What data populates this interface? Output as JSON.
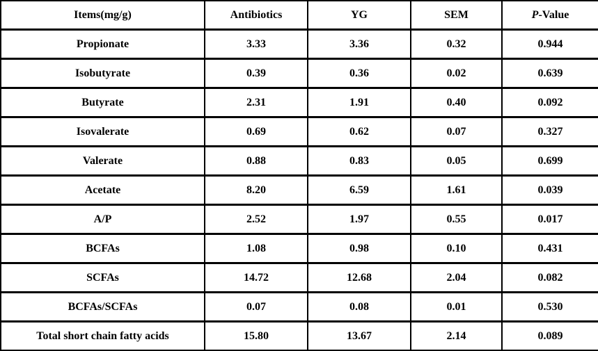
{
  "table": {
    "headers": {
      "items": "Items(mg/g)",
      "antibiotics": "Antibiotics",
      "yg": "YG",
      "sem": "SEM",
      "pvalue_italic": "P",
      "pvalue_rest": "-Value"
    },
    "rows": [
      {
        "item": "Propionate",
        "antibiotics": "3.33",
        "yg": "3.36",
        "sem": "0.32",
        "pvalue": "0.944"
      },
      {
        "item": "Isobutyrate",
        "antibiotics": "0.39",
        "yg": "0.36",
        "sem": "0.02",
        "pvalue": "0.639"
      },
      {
        "item": "Butyrate",
        "antibiotics": "2.31",
        "yg": "1.91",
        "sem": "0.40",
        "pvalue": "0.092"
      },
      {
        "item": "Isovalerate",
        "antibiotics": "0.69",
        "yg": "0.62",
        "sem": "0.07",
        "pvalue": "0.327"
      },
      {
        "item": "Valerate",
        "antibiotics": "0.88",
        "yg": "0.83",
        "sem": "0.05",
        "pvalue": "0.699"
      },
      {
        "item": "Acetate",
        "antibiotics": "8.20",
        "yg": "6.59",
        "sem": "1.61",
        "pvalue": "0.039"
      },
      {
        "item": "A/P",
        "antibiotics": "2.52",
        "yg": "1.97",
        "sem": "0.55",
        "pvalue": "0.017"
      },
      {
        "item": "BCFAs",
        "antibiotics": "1.08",
        "yg": "0.98",
        "sem": "0.10",
        "pvalue": "0.431"
      },
      {
        "item": "SCFAs",
        "antibiotics": "14.72",
        "yg": "12.68",
        "sem": "2.04",
        "pvalue": "0.082"
      },
      {
        "item": "BCFAs/SCFAs",
        "antibiotics": "0.07",
        "yg": "0.08",
        "sem": "0.01",
        "pvalue": "0.530"
      },
      {
        "item": "Total short chain fatty acids",
        "antibiotics": "15.80",
        "yg": "13.67",
        "sem": "2.14",
        "pvalue": "0.089"
      }
    ],
    "colors": {
      "border": "#000000",
      "text": "#000000",
      "background": "#ffffff"
    }
  }
}
